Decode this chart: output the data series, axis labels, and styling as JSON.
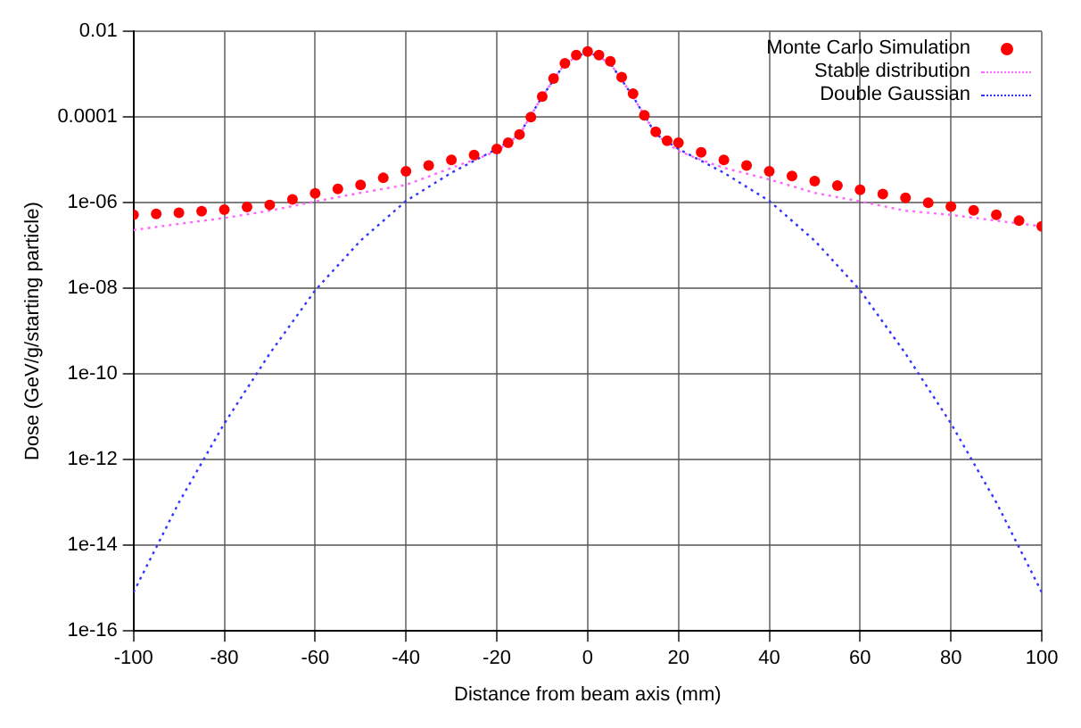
{
  "chart_data": {
    "type": "scatter",
    "xlabel": "Distance from beam axis (mm)",
    "ylabel": "Dose (GeV/g/starting particle)",
    "xlim": [
      -100,
      100
    ],
    "xticks": [
      -100,
      -80,
      -60,
      -40,
      -20,
      0,
      20,
      40,
      60,
      80,
      100
    ],
    "ylim": [
      1e-16,
      0.01
    ],
    "yticks": [
      {
        "value": 1e-16,
        "label": "1e-16"
      },
      {
        "value": 1e-14,
        "label": "1e-14"
      },
      {
        "value": 1e-12,
        "label": "1e-12"
      },
      {
        "value": 1e-10,
        "label": "1e-10"
      },
      {
        "value": 1e-08,
        "label": "1e-08"
      },
      {
        "value": 1e-06,
        "label": "1e-06"
      },
      {
        "value": 0.0001,
        "label": "0.0001"
      },
      {
        "value": 0.01,
        "label": "0.01"
      }
    ],
    "log": "y",
    "grid": true,
    "legend": "top right",
    "series": [
      {
        "name": "Monte Carlo Simulation",
        "marker": "circle",
        "color": "#ff0000",
        "x": [
          -100,
          -95,
          -90,
          -85,
          -80,
          -75,
          -70,
          -65,
          -60,
          -55,
          -50,
          -45,
          -40,
          -35,
          -30,
          -25,
          -20,
          -17.5,
          -15,
          -12.5,
          -10,
          -7.5,
          -5,
          -2.5,
          0,
          2.5,
          5,
          7.5,
          10,
          12.5,
          15,
          17.5,
          20,
          25,
          30,
          35,
          40,
          45,
          50,
          55,
          60,
          65,
          70,
          75,
          80,
          85,
          90,
          95,
          100
        ],
        "values": [
          5.2e-07,
          5.5e-07,
          5.8e-07,
          6.3e-07,
          6.9e-07,
          7.9e-07,
          8.9e-07,
          1.2e-06,
          1.66e-06,
          2.1e-06,
          2.6e-06,
          3.8e-06,
          5.4e-06,
          7.4e-06,
          1e-05,
          1.3e-05,
          1.8e-05,
          2.5e-05,
          3.9e-05,
          0.0001,
          0.0003,
          0.00079,
          0.0018,
          0.0028,
          0.0034,
          0.0028,
          0.002,
          0.00085,
          0.00035,
          0.00011,
          4.5e-05,
          2.8e-05,
          2.5e-05,
          1.5e-05,
          1e-05,
          7.4e-06,
          5.4e-06,
          4.2e-06,
          3.2e-06,
          2.5e-06,
          2e-06,
          1.6e-06,
          1.3e-06,
          1e-06,
          8.1e-07,
          6.6e-07,
          5.2e-07,
          3.8e-07,
          2.8e-07
        ]
      },
      {
        "name": "Stable distribution",
        "type": "line",
        "marker": "none",
        "line_style": "dotted",
        "color": "#ff66ff",
        "x": [
          -100,
          -90,
          -80,
          -70,
          -60,
          -50,
          -40,
          -30,
          -25,
          -20,
          -15,
          -10,
          -5,
          0,
          5,
          10,
          15,
          20,
          25,
          30,
          40,
          50,
          60,
          70,
          80,
          90,
          100
        ],
        "values": [
          2.3e-07,
          3.2e-07,
          4.4e-07,
          6.5e-07,
          1.07e-06,
          1.7e-06,
          2.6e-06,
          6.5e-06,
          1e-05,
          1.6e-05,
          3.9e-05,
          0.0003,
          0.0018,
          0.0034,
          0.0018,
          0.0003,
          3.9e-05,
          1.6e-05,
          1e-05,
          6.5e-06,
          3.5e-06,
          1.7e-06,
          1.07e-06,
          6.5e-07,
          5.2e-07,
          3.8e-07,
          2.8e-07
        ]
      },
      {
        "name": "Double Gaussian",
        "type": "line",
        "marker": "none",
        "line_style": "dotted",
        "color": "#3333ff",
        "x": [
          -100,
          -90,
          -80,
          -70,
          -60,
          -50,
          -40,
          -30,
          -20,
          -15,
          -10,
          -5,
          0,
          5,
          10,
          15,
          20,
          30,
          40,
          50,
          60,
          70,
          80,
          90,
          100
        ],
        "values": [
          8e-16,
          1e-13,
          7e-12,
          3e-10,
          9e-09,
          1.3e-07,
          1.1e-06,
          5e-06,
          1.8e-05,
          4e-05,
          0.0003,
          0.0018,
          0.0034,
          0.0018,
          0.0003,
          4e-05,
          1.8e-05,
          5e-06,
          1.1e-06,
          1.3e-07,
          9e-09,
          3e-10,
          7e-12,
          1e-13,
          8e-16
        ]
      }
    ]
  }
}
